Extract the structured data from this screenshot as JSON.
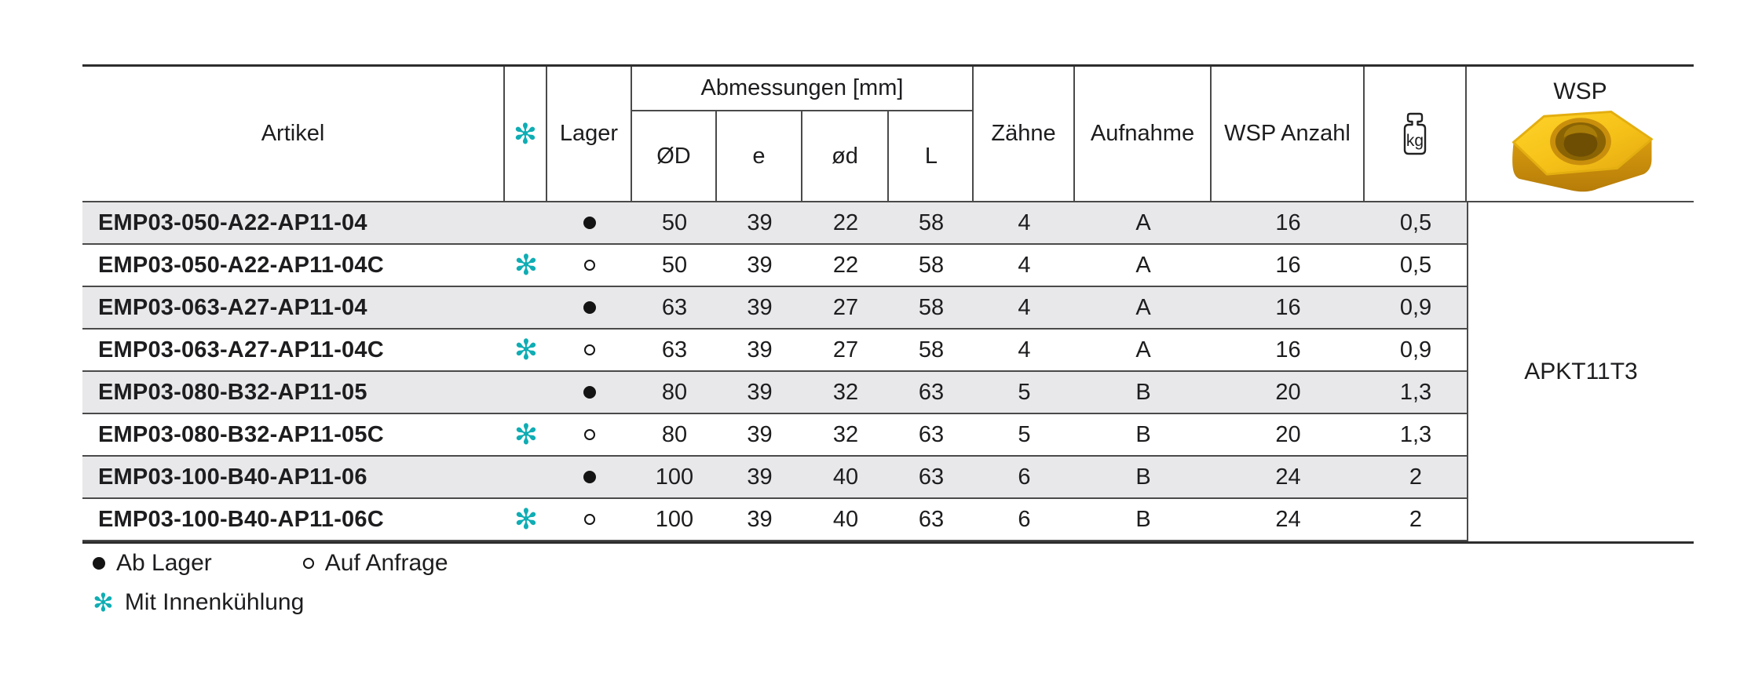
{
  "table": {
    "headers": {
      "artikel": "Artikel",
      "cooling_icon": "✻",
      "lager": "Lager",
      "abmessungen": "Abmessungen [mm]",
      "sub_od": "ØD",
      "sub_e": "e",
      "sub_d": "ød",
      "sub_l": "L",
      "zaehne": "Zähne",
      "aufnahme": "Aufnahme",
      "wsp_anzahl": "WSP Anzahl",
      "kg_label": "kg",
      "wsp": "WSP"
    },
    "wsp_insert": "APKT11T3",
    "rows": [
      {
        "artikel": "EMP03-050-A22-AP11-04",
        "cooling": false,
        "lager": "ab-lager",
        "od": "50",
        "e": "39",
        "d": "22",
        "l": "58",
        "zaehne": "4",
        "aufnahme": "A",
        "wsp_anzahl": "16",
        "kg": "0,5"
      },
      {
        "artikel": "EMP03-050-A22-AP11-04C",
        "cooling": true,
        "lager": "auf-anfrage",
        "od": "50",
        "e": "39",
        "d": "22",
        "l": "58",
        "zaehne": "4",
        "aufnahme": "A",
        "wsp_anzahl": "16",
        "kg": "0,5"
      },
      {
        "artikel": "EMP03-063-A27-AP11-04",
        "cooling": false,
        "lager": "ab-lager",
        "od": "63",
        "e": "39",
        "d": "27",
        "l": "58",
        "zaehne": "4",
        "aufnahme": "A",
        "wsp_anzahl": "16",
        "kg": "0,9"
      },
      {
        "artikel": "EMP03-063-A27-AP11-04C",
        "cooling": true,
        "lager": "auf-anfrage",
        "od": "63",
        "e": "39",
        "d": "27",
        "l": "58",
        "zaehne": "4",
        "aufnahme": "A",
        "wsp_anzahl": "16",
        "kg": "0,9"
      },
      {
        "artikel": "EMP03-080-B32-AP11-05",
        "cooling": false,
        "lager": "ab-lager",
        "od": "80",
        "e": "39",
        "d": "32",
        "l": "63",
        "zaehne": "5",
        "aufnahme": "B",
        "wsp_anzahl": "20",
        "kg": "1,3"
      },
      {
        "artikel": "EMP03-080-B32-AP11-05C",
        "cooling": true,
        "lager": "auf-anfrage",
        "od": "80",
        "e": "39",
        "d": "32",
        "l": "63",
        "zaehne": "5",
        "aufnahme": "B",
        "wsp_anzahl": "20",
        "kg": "1,3"
      },
      {
        "artikel": "EMP03-100-B40-AP11-06",
        "cooling": false,
        "lager": "ab-lager",
        "od": "100",
        "e": "39",
        "d": "40",
        "l": "63",
        "zaehne": "6",
        "aufnahme": "B",
        "wsp_anzahl": "24",
        "kg": "2"
      },
      {
        "artikel": "EMP03-100-B40-AP11-06C",
        "cooling": true,
        "lager": "auf-anfrage",
        "od": "100",
        "e": "39",
        "d": "40",
        "l": "63",
        "zaehne": "6",
        "aufnahme": "B",
        "wsp_anzahl": "24",
        "kg": "2"
      }
    ]
  },
  "legend": {
    "ab_lager": "Ab Lager",
    "auf_anfrage": "Auf Anfrage",
    "cooling_icon": "✻",
    "mit_innenkuehlung": "Mit Innenkühlung"
  },
  "colors": {
    "accent_teal": "#0fadb4",
    "stripe_grey": "#e8e8ea",
    "insert_yellow": "#f5c118",
    "line_dark": "#2d2d2d"
  }
}
